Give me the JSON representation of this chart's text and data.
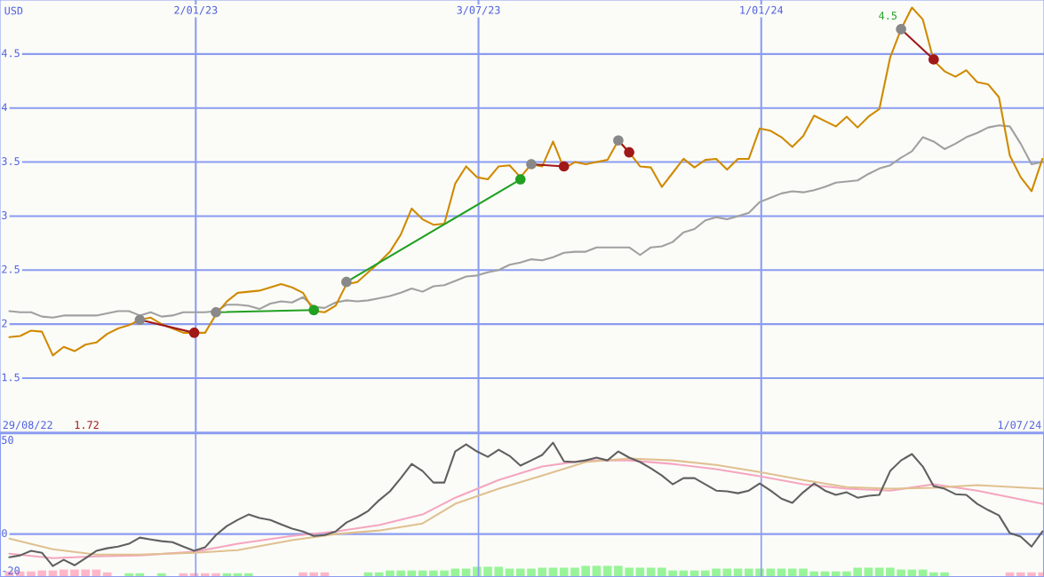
{
  "chart_data": [
    {
      "type": "line",
      "ylabel": "USD",
      "x": [
        "2022-09-04",
        "2022-09-11",
        "2022-09-18",
        "2022-09-25",
        "2022-10-02",
        "2022-10-09",
        "2022-10-16",
        "2022-10-23",
        "2022-10-30",
        "2022-11-06",
        "2022-11-13",
        "2022-11-20",
        "2022-11-27",
        "2022-12-04",
        "2022-12-11",
        "2022-12-18",
        "2022-12-25",
        "2023-01-01",
        "2023-01-08",
        "2023-01-15",
        "2023-01-22",
        "2023-01-29",
        "2023-02-05",
        "2023-02-12",
        "2023-02-19",
        "2023-02-26",
        "2023-03-05",
        "2023-03-12",
        "2023-03-19",
        "2023-03-26",
        "2023-04-02",
        "2023-04-09",
        "2023-04-16",
        "2023-04-23",
        "2023-04-30",
        "2023-05-07",
        "2023-05-14",
        "2023-05-21",
        "2023-05-28",
        "2023-06-04",
        "2023-06-11",
        "2023-06-18",
        "2023-06-25",
        "2023-07-02",
        "2023-07-09",
        "2023-07-16",
        "2023-07-23",
        "2023-07-30",
        "2023-08-06",
        "2023-08-13",
        "2023-08-20",
        "2023-08-27",
        "2023-09-03",
        "2023-09-10",
        "2023-09-17",
        "2023-09-24",
        "2023-10-01",
        "2023-10-08",
        "2023-10-15",
        "2023-10-22",
        "2023-10-29",
        "2023-11-05",
        "2023-11-12",
        "2023-11-19",
        "2023-11-26",
        "2023-12-03",
        "2023-12-10",
        "2023-12-17",
        "2023-12-24",
        "2023-12-31",
        "2024-01-07",
        "2024-01-14",
        "2024-01-21",
        "2024-01-28",
        "2024-02-04",
        "2024-02-11",
        "2024-02-18",
        "2024-02-25",
        "2024-03-03",
        "2024-03-10",
        "2024-03-17",
        "2024-03-24",
        "2024-03-31",
        "2024-04-07",
        "2024-04-14",
        "2024-04-21",
        "2024-04-28",
        "2024-05-05",
        "2024-05-12",
        "2024-05-19",
        "2024-05-26",
        "2024-06-02",
        "2024-06-09",
        "2024-06-16",
        "2024-06-23",
        "2024-06-30"
      ],
      "series": [
        {
          "color": "#a0a0a0",
          "values": [
            2.12,
            2.11,
            2.11,
            2.07,
            2.06,
            2.08,
            2.08,
            2.08,
            2.08,
            2.1,
            2.12,
            2.12,
            2.08,
            2.11,
            2.07,
            2.08,
            2.11,
            2.11,
            2.11,
            2.12,
            2.18,
            2.18,
            2.17,
            2.14,
            2.19,
            2.21,
            2.2,
            2.25,
            2.16,
            2.15,
            2.2,
            2.22,
            2.21,
            2.22,
            2.24,
            2.26,
            2.29,
            2.33,
            2.3,
            2.35,
            2.36,
            2.4,
            2.44,
            2.45,
            2.48,
            2.5,
            2.55,
            2.57,
            2.6,
            2.59,
            2.62,
            2.66,
            2.67,
            2.67,
            2.71,
            2.71,
            2.71,
            2.71,
            2.64,
            2.71,
            2.72,
            2.76,
            2.85,
            2.88,
            2.96,
            2.99,
            2.97,
            3.0,
            3.03,
            3.13,
            3.17,
            3.21,
            3.23,
            3.22,
            3.24,
            3.27,
            3.31,
            3.32,
            3.33,
            3.39,
            3.44,
            3.47,
            3.54,
            3.6,
            3.73,
            3.69,
            3.62,
            3.67,
            3.73,
            3.77,
            3.82,
            3.84,
            3.83,
            3.67,
            3.48,
            3.5
          ]
        },
        {
          "color": "#d08a00",
          "values": [
            1.88,
            1.89,
            1.94,
            1.93,
            1.71,
            1.79,
            1.75,
            1.81,
            1.83,
            1.91,
            1.96,
            1.99,
            2.04,
            2.06,
            2.0,
            1.96,
            1.92,
            1.92,
            1.92,
            2.09,
            2.21,
            2.29,
            2.3,
            2.31,
            2.34,
            2.37,
            2.34,
            2.29,
            2.12,
            2.11,
            2.17,
            2.37,
            2.39,
            2.48,
            2.57,
            2.67,
            2.83,
            3.07,
            2.97,
            2.92,
            2.93,
            3.3,
            3.46,
            3.36,
            3.34,
            3.46,
            3.47,
            3.36,
            3.48,
            3.46,
            3.69,
            3.44,
            3.5,
            3.48,
            3.5,
            3.52,
            3.7,
            3.59,
            3.46,
            3.45,
            3.27,
            3.4,
            3.53,
            3.45,
            3.52,
            3.53,
            3.43,
            3.53,
            3.53,
            3.81,
            3.79,
            3.73,
            3.64,
            3.74,
            3.93,
            3.88,
            3.83,
            3.92,
            3.82,
            3.92,
            3.99,
            4.47,
            4.73,
            4.93,
            4.82,
            4.44,
            4.34,
            4.29,
            4.35,
            4.24,
            4.22,
            4.1,
            3.56,
            3.36,
            3.23,
            3.53
          ]
        },
        {
          "color": "#a01818",
          "marker": "circle",
          "x": [
            "2022-11-27",
            "2023-01-01"
          ],
          "values": [
            2.04,
            1.92
          ],
          "colors": [
            "#888888",
            "#a01818"
          ]
        },
        {
          "color": "#22a022",
          "marker": "circle",
          "x": [
            "2023-01-15",
            "2023-03-19"
          ],
          "values": [
            2.11,
            2.13
          ],
          "colors": [
            "#888888",
            "#22a022"
          ]
        },
        {
          "color": "#22a022",
          "marker": "circle",
          "x": [
            "2023-04-09",
            "2023-07-30"
          ],
          "values": [
            2.39,
            3.34
          ],
          "colors": [
            "#888888",
            "#22a022"
          ]
        },
        {
          "color": "#a01818",
          "marker": "circle",
          "x": [
            "2023-08-06",
            "2023-08-27"
          ],
          "values": [
            3.48,
            3.46
          ],
          "colors": [
            "#888888",
            "#a01818"
          ]
        },
        {
          "color": "#a01818",
          "marker": "circle",
          "x": [
            "2023-10-01",
            "2023-10-08"
          ],
          "values": [
            3.7,
            3.59
          ],
          "colors": [
            "#888888",
            "#a01818"
          ]
        },
        {
          "color": "#a01818",
          "marker": "circle",
          "x": [
            "2024-03-31",
            "2024-04-21"
          ],
          "values": [
            4.73,
            4.45
          ],
          "colors": [
            "#888888",
            "#a01818"
          ]
        }
      ],
      "annotations": [
        {
          "text": "4.5",
          "x": "2024-03-31",
          "y": 4.8
        }
      ],
      "xlim": [
        "2022-08-29",
        "2024-07-01"
      ],
      "xticks": [
        {
          "value": "2023-01-02",
          "label": "2/01/23"
        },
        {
          "value": "2023-07-03",
          "label": "3/07/23"
        },
        {
          "value": "2024-01-01",
          "label": "1/01/24"
        }
      ],
      "ylim": [
        1.0,
        5.0
      ],
      "yticks": [
        1.5,
        2,
        2.5,
        3,
        3.5,
        4,
        4.5
      ],
      "grid": true,
      "legend": false
    },
    {
      "type": "line",
      "x": [
        "2022-09-04",
        "2022-09-11",
        "2022-09-18",
        "2022-09-25",
        "2022-10-02",
        "2022-10-09",
        "2022-10-16",
        "2022-10-23",
        "2022-10-30",
        "2022-11-06",
        "2022-11-13",
        "2022-11-20",
        "2022-11-27",
        "2022-12-04",
        "2022-12-11",
        "2022-12-18",
        "2022-12-25",
        "2023-01-01",
        "2023-01-08",
        "2023-01-15",
        "2023-01-22",
        "2023-01-29",
        "2023-02-05",
        "2023-02-12",
        "2023-02-19",
        "2023-02-26",
        "2023-03-05",
        "2023-03-12",
        "2023-03-19",
        "2023-03-26",
        "2023-04-02",
        "2023-04-09",
        "2023-04-16",
        "2023-04-23",
        "2023-04-30",
        "2023-05-07",
        "2023-05-14",
        "2023-05-21",
        "2023-05-28",
        "2023-06-04",
        "2023-06-11",
        "2023-06-18",
        "2023-06-25",
        "2023-07-02",
        "2023-07-09",
        "2023-07-16",
        "2023-07-23",
        "2023-07-30",
        "2023-08-06",
        "2023-08-13",
        "2023-08-20",
        "2023-08-27",
        "2023-09-03",
        "2023-09-10",
        "2023-09-17",
        "2023-09-24",
        "2023-10-01",
        "2023-10-08",
        "2023-10-15",
        "2023-10-22",
        "2023-10-29",
        "2023-11-05",
        "2023-11-12",
        "2023-11-19",
        "2023-11-26",
        "2023-12-03",
        "2023-12-10",
        "2023-12-17",
        "2023-12-24",
        "2023-12-31",
        "2024-01-07",
        "2024-01-14",
        "2024-01-21",
        "2024-01-28",
        "2024-02-04",
        "2024-02-11",
        "2024-02-18",
        "2024-02-25",
        "2024-03-03",
        "2024-03-10",
        "2024-03-17",
        "2024-03-24",
        "2024-03-31",
        "2024-04-07",
        "2024-04-14",
        "2024-04-21",
        "2024-04-28",
        "2024-05-05",
        "2024-05-12",
        "2024-05-19",
        "2024-05-26",
        "2024-06-02",
        "2024-06-09",
        "2024-06-16",
        "2024-06-23",
        "2024-06-30"
      ],
      "series": [
        {
          "type": "bar",
          "values": [
            3,
            3,
            3,
            3.5,
            3.5,
            4,
            4,
            4,
            4,
            2.5,
            null,
            2,
            2,
            null,
            2,
            null,
            2,
            2,
            2,
            2,
            2,
            2,
            2,
            null,
            null,
            null,
            null,
            2.5,
            2.5,
            2.5,
            null,
            null,
            null,
            2.5,
            2.5,
            3.5,
            3.5,
            3.5,
            3.5,
            3.5,
            3.5,
            4.5,
            4.5,
            5.5,
            5.5,
            5.5,
            4.5,
            4.5,
            4.5,
            5,
            5,
            5,
            5,
            6,
            6,
            6,
            6,
            5,
            5,
            5,
            5,
            3.5,
            3.5,
            3.5,
            3.5,
            4.5,
            4.5,
            4.5,
            4.5,
            4.5,
            4.5,
            4.5,
            4.5,
            4.5,
            3,
            3,
            3,
            3,
            5,
            5,
            5,
            5,
            4,
            4,
            4,
            2.5,
            2.5,
            null,
            null,
            null,
            null,
            null,
            2.5,
            2.5,
            2.5,
            2.5
          ],
          "base": [
            -23,
            -23,
            -23,
            -23,
            -23,
            -23,
            -23,
            -23,
            -23,
            -23,
            null,
            -23,
            -23,
            null,
            -23,
            null,
            -23,
            -23,
            -23,
            -23,
            -23,
            -23,
            -23,
            null,
            null,
            null,
            null,
            -23,
            -23,
            -23,
            null,
            null,
            null,
            -23,
            -23,
            -23,
            -23,
            -23,
            -23,
            -23,
            -23,
            -23,
            -23,
            -23,
            -23,
            -23,
            -23,
            -23,
            -23,
            -23,
            -23,
            -23,
            -23,
            -23,
            -23,
            -23,
            -23,
            -23,
            -23,
            -23,
            -23,
            -23,
            -23,
            -23,
            -23,
            -23,
            -23,
            -23,
            -23,
            -23,
            -23,
            -23,
            -23,
            -23,
            -23,
            -23,
            -23,
            -23,
            -23,
            -23,
            -23,
            -23,
            -23,
            -23,
            -23,
            -23,
            -23,
            null,
            null,
            null,
            null,
            null,
            -23,
            -23,
            -23,
            -23
          ],
          "colors": [
            "#ffb6c8",
            "#ffb6c8",
            "#ffb6c8",
            "#ffb6c8",
            "#ffb6c8",
            "#ffb6c8",
            "#ffb6c8",
            "#ffb6c8",
            "#ffb6c8",
            "#ffb6c8",
            null,
            "#98f498",
            "#98f498",
            null,
            "#98f498",
            null,
            "#ffb6c8",
            "#ffb6c8",
            "#ffb6c8",
            "#ffb6c8",
            "#98f498",
            "#98f498",
            "#98f498",
            null,
            null,
            null,
            null,
            "#ffb6c8",
            "#ffb6c8",
            "#ffb6c8",
            null,
            null,
            null,
            "#98f498",
            "#98f498",
            "#98f498",
            "#98f498",
            "#98f498",
            "#98f498",
            "#98f498",
            "#98f498",
            "#98f498",
            "#98f498",
            "#98f498",
            "#98f498",
            "#98f498",
            "#98f498",
            "#98f498",
            "#98f498",
            "#98f498",
            "#98f498",
            "#98f498",
            "#98f498",
            "#98f498",
            "#98f498",
            "#98f498",
            "#98f498",
            "#98f498",
            "#98f498",
            "#98f498",
            "#98f498",
            "#98f498",
            "#98f498",
            "#98f498",
            "#98f498",
            "#98f498",
            "#98f498",
            "#98f498",
            "#98f498",
            "#98f498",
            "#98f498",
            "#98f498",
            "#98f498",
            "#98f498",
            "#98f498",
            "#98f498",
            "#98f498",
            "#98f498",
            "#98f498",
            "#98f498",
            "#98f498",
            "#98f498",
            "#98f498",
            "#98f498",
            "#98f498",
            "#98f498",
            "#98f498",
            null,
            null,
            null,
            null,
            null,
            "#ffb6c8",
            "#ffb6c8",
            "#ffb6c8",
            "#ffb6c8"
          ]
        },
        {
          "color": "#f4a6c0",
          "x": [
            "2022-09-04",
            "2022-10-02",
            "2022-10-30",
            "2022-11-27",
            "2023-01-01",
            "2023-01-29",
            "2023-03-05",
            "2023-04-02",
            "2023-04-30",
            "2023-05-28",
            "2023-06-18",
            "2023-07-16",
            "2023-08-13",
            "2023-09-10",
            "2023-10-08",
            "2023-11-05",
            "2023-12-03",
            "2023-12-31",
            "2024-01-28",
            "2024-02-25",
            "2024-03-24",
            "2024-04-21",
            "2024-05-19",
            "2024-06-30"
          ],
          "values": [
            -10.5,
            -12.9,
            -11.9,
            -11.4,
            -9.5,
            -5.2,
            -1.0,
            1.4,
            4.8,
            10.5,
            19.5,
            29.0,
            36.2,
            39.5,
            39.5,
            37.6,
            34.8,
            31.0,
            26.7,
            24.3,
            23.3,
            26.7,
            23.3,
            16.2
          ]
        },
        {
          "color": "#e0c090",
          "x": [
            "2022-09-04",
            "2022-10-02",
            "2022-10-30",
            "2022-11-27",
            "2023-01-01",
            "2023-01-29",
            "2023-03-05",
            "2023-04-02",
            "2023-04-30",
            "2023-05-28",
            "2023-06-18",
            "2023-07-16",
            "2023-08-13",
            "2023-09-10",
            "2023-10-08",
            "2023-11-05",
            "2023-12-03",
            "2023-12-31",
            "2024-01-28",
            "2024-02-25",
            "2024-03-24",
            "2024-04-21",
            "2024-05-19",
            "2024-06-30"
          ],
          "values": [
            -2.4,
            -8.1,
            -11.0,
            -11.0,
            -10.0,
            -8.6,
            -3.3,
            0,
            1.9,
            5.7,
            16.2,
            24.3,
            31.4,
            38.6,
            40.5,
            39.5,
            37.1,
            33.3,
            29.0,
            25.2,
            24.3,
            24.8,
            26.2,
            24.3
          ]
        },
        {
          "color": "#606060",
          "values": [
            -12.4,
            -11.4,
            -9.0,
            -10.0,
            -17.1,
            -13.8,
            -16.7,
            -12.9,
            -9.0,
            -7.6,
            -6.7,
            -5.2,
            -1.9,
            -2.9,
            -3.8,
            -4.3,
            -6.7,
            -9.0,
            -7.1,
            -0.5,
            4.3,
            7.6,
            10.5,
            8.6,
            7.6,
            5.2,
            2.9,
            1.4,
            -1.0,
            -0.5,
            1.4,
            6.2,
            9.0,
            12.4,
            18.1,
            22.9,
            30.0,
            37.6,
            33.8,
            27.6,
            27.6,
            44.3,
            48.1,
            44.3,
            41.4,
            45.2,
            41.9,
            36.7,
            39.5,
            42.4,
            49.0,
            39.0,
            38.6,
            39.5,
            41.0,
            39.5,
            44.3,
            41.0,
            38.6,
            35.2,
            31.4,
            26.7,
            30.0,
            30.0,
            26.7,
            23.3,
            22.9,
            21.9,
            23.3,
            27.1,
            23.3,
            19.0,
            16.7,
            22.4,
            27.1,
            23.3,
            21.0,
            22.4,
            19.5,
            20.5,
            21.0,
            33.8,
            39.5,
            42.9,
            36.2,
            25.7,
            24.3,
            21.4,
            21.0,
            16.2,
            12.9,
            10.0,
            0.5,
            -1.4,
            -6.7,
            1.4
          ]
        }
      ],
      "annotations": [
        "29/08/22",
        "1.72",
        "1/07/24"
      ],
      "tick_labels": "y",
      "xlim": [
        "2022-08-29",
        "2024-07-01"
      ],
      "xticks": [
        {
          "value": "2023-01-02",
          "label": null
        },
        {
          "value": "2023-07-03",
          "label": null
        },
        {
          "value": "2024-01-01",
          "label": null
        }
      ],
      "ylim": [
        -23,
        54
      ],
      "yticks": [
        -20,
        0,
        50
      ],
      "grid": "x",
      "legend": false,
      "ref_lines": [
        {
          "axis": "y",
          "value": 0,
          "color": "#8c9cf0"
        }
      ]
    }
  ]
}
